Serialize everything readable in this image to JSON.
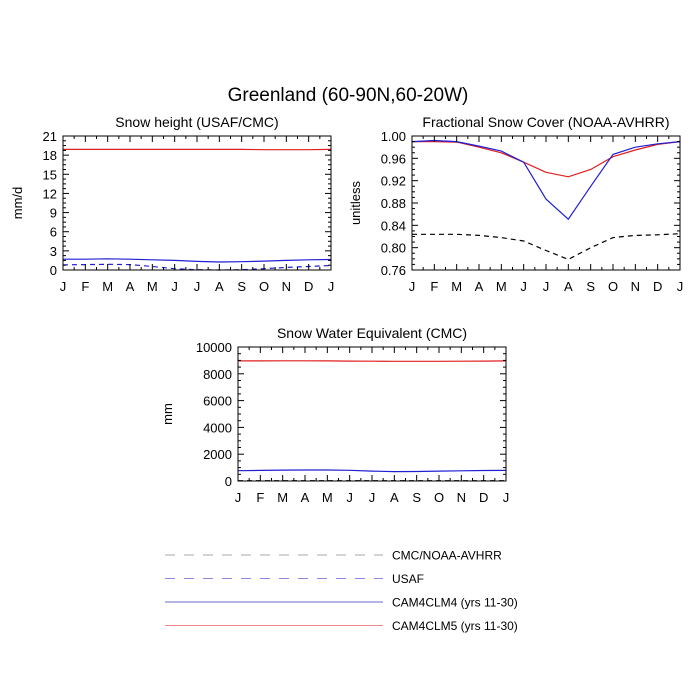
{
  "title": "Greenland (60-90N,60-20W)",
  "series_styles": {
    "cmc_noaa": {
      "color": "#000000",
      "dash": "dashed"
    },
    "usaf": {
      "color": "#1f1fd6",
      "dash": "dashed"
    },
    "cam4clm4": {
      "color": "#1f1fd6",
      "dash": "solid"
    },
    "cam4clm5": {
      "color": "#e01f1f",
      "dash": "solid"
    }
  },
  "chart_data": [
    {
      "type": "line",
      "title": "Snow height (USAF/CMC)",
      "xlabel": "",
      "ylabel": "mm/d",
      "categories": [
        "J",
        "F",
        "M",
        "A",
        "M",
        "J",
        "J",
        "A",
        "S",
        "O",
        "N",
        "D",
        "J"
      ],
      "ylim": [
        0,
        21
      ],
      "yticks": [
        0,
        3,
        6,
        9,
        12,
        15,
        18,
        21
      ],
      "ytick_labels": [
        "0",
        "3",
        "6",
        "9",
        "12",
        "15",
        "18",
        "21"
      ],
      "series": [
        {
          "key": "cam4clm5",
          "values": [
            18.9,
            18.9,
            18.9,
            18.9,
            18.9,
            18.9,
            18.9,
            18.9,
            18.9,
            18.85,
            18.85,
            18.85,
            18.9
          ]
        },
        {
          "key": "cam4clm4",
          "values": [
            1.7,
            1.7,
            1.75,
            1.7,
            1.6,
            1.5,
            1.35,
            1.25,
            1.3,
            1.4,
            1.5,
            1.6,
            1.65
          ]
        },
        {
          "key": "usaf",
          "values": [
            0.8,
            0.85,
            0.9,
            0.85,
            0.55,
            0.2,
            0.05,
            0.0,
            0.05,
            0.2,
            0.4,
            0.55,
            0.7
          ]
        }
      ]
    },
    {
      "type": "line",
      "title": "Fractional Snow Cover (NOAA-AVHRR)",
      "xlabel": "",
      "ylabel": "unitless",
      "categories": [
        "J",
        "F",
        "M",
        "A",
        "M",
        "J",
        "J",
        "A",
        "S",
        "O",
        "N",
        "D",
        "J"
      ],
      "ylim": [
        0.76,
        1.0
      ],
      "yticks": [
        0.76,
        0.8,
        0.84,
        0.88,
        0.92,
        0.96,
        1.0
      ],
      "ytick_labels": [
        "0.76",
        "0.80",
        "0.84",
        "0.88",
        "0.92",
        "0.96",
        "1.00"
      ],
      "series": [
        {
          "key": "cam4clm5",
          "values": [
            0.99,
            0.99,
            0.989,
            0.98,
            0.97,
            0.953,
            0.935,
            0.927,
            0.94,
            0.963,
            0.975,
            0.985,
            0.99
          ]
        },
        {
          "key": "cam4clm4",
          "values": [
            0.99,
            0.992,
            0.99,
            0.982,
            0.973,
            0.953,
            0.887,
            0.851,
            0.91,
            0.967,
            0.98,
            0.986,
            0.99
          ]
        },
        {
          "key": "cmc_noaa",
          "values": [
            0.824,
            0.824,
            0.824,
            0.822,
            0.818,
            0.812,
            0.795,
            0.779,
            0.8,
            0.818,
            0.822,
            0.823,
            0.825
          ]
        }
      ]
    },
    {
      "type": "line",
      "title": "Snow Water Equivalent (CMC)",
      "xlabel": "",
      "ylabel": "mm",
      "categories": [
        "J",
        "F",
        "M",
        "A",
        "M",
        "J",
        "J",
        "A",
        "S",
        "O",
        "N",
        "D",
        "J"
      ],
      "ylim": [
        0,
        10000
      ],
      "yticks": [
        0,
        2000,
        4000,
        6000,
        8000,
        10000
      ],
      "ytick_labels": [
        "0",
        "2000",
        "4000",
        "6000",
        "8000",
        "10000"
      ],
      "series": [
        {
          "key": "cam4clm5",
          "values": [
            8960,
            8960,
            8970,
            8970,
            8960,
            8950,
            8940,
            8930,
            8930,
            8930,
            8940,
            8950,
            8960
          ]
        },
        {
          "key": "cam4clm4",
          "values": [
            770,
            790,
            810,
            820,
            820,
            800,
            740,
            700,
            710,
            740,
            760,
            780,
            790
          ]
        },
        {
          "key": "cmc_noaa",
          "values": [
            20,
            20,
            20,
            20,
            20,
            20,
            20,
            20,
            20,
            20,
            20,
            20,
            20
          ]
        }
      ]
    }
  ],
  "legend": [
    {
      "key": "cmc_noaa",
      "label": "CMC/NOAA-AVHRR",
      "swatch_color": "#aaaaaa",
      "dash": "dashed"
    },
    {
      "key": "usaf",
      "label": "USAF",
      "swatch_color": "#8888dd",
      "dash": "dashed"
    },
    {
      "key": "cam4clm4",
      "label": "CAM4CLM4 (yrs 11-30)",
      "swatch_color": "#6a6acc",
      "dash": "solid"
    },
    {
      "key": "cam4clm5",
      "label": "CAM4CLM5 (yrs 11-30)",
      "swatch_color": "#f08a8a",
      "dash": "solid"
    }
  ]
}
